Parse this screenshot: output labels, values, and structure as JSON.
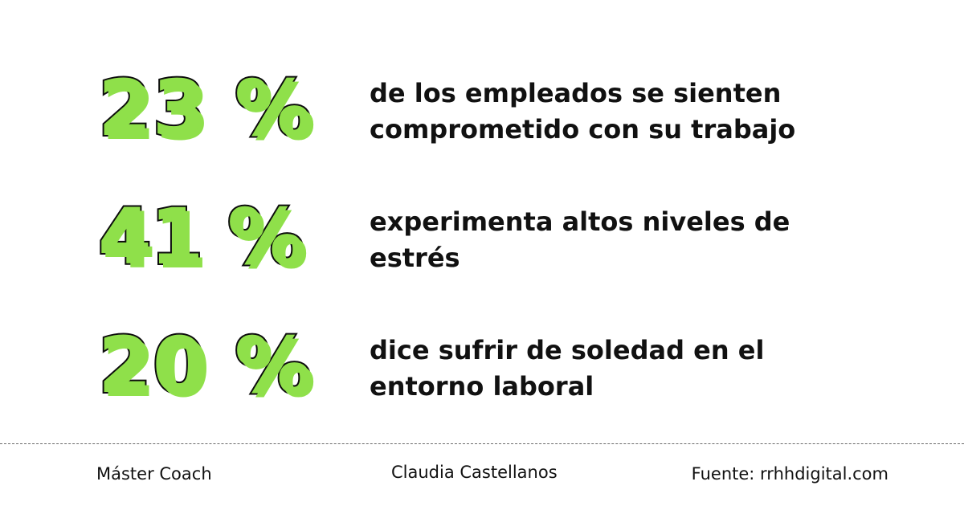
{
  "stats": [
    {
      "number": "23 %",
      "text_line1": "de los empleados se sienten",
      "text_line2": "comprometido con su trabajo"
    },
    {
      "number": "41 %",
      "text_line1": "experimenta altos niveles de",
      "text_line2": "estrés"
    },
    {
      "number": "20 %",
      "text_line1": "dice sufrir de soledad en el",
      "text_line2": "entorno laboral"
    }
  ],
  "colors": {
    "accent": "#8fe04a",
    "outline": "#0c0c0c",
    "text": "#111111",
    "background": "#ffffff",
    "divider": "#6b6b6b"
  },
  "footer": {
    "left": "Máster Coach",
    "center": "Claudia Castellanos",
    "right": "Fuente: rrhhdigital.com"
  }
}
